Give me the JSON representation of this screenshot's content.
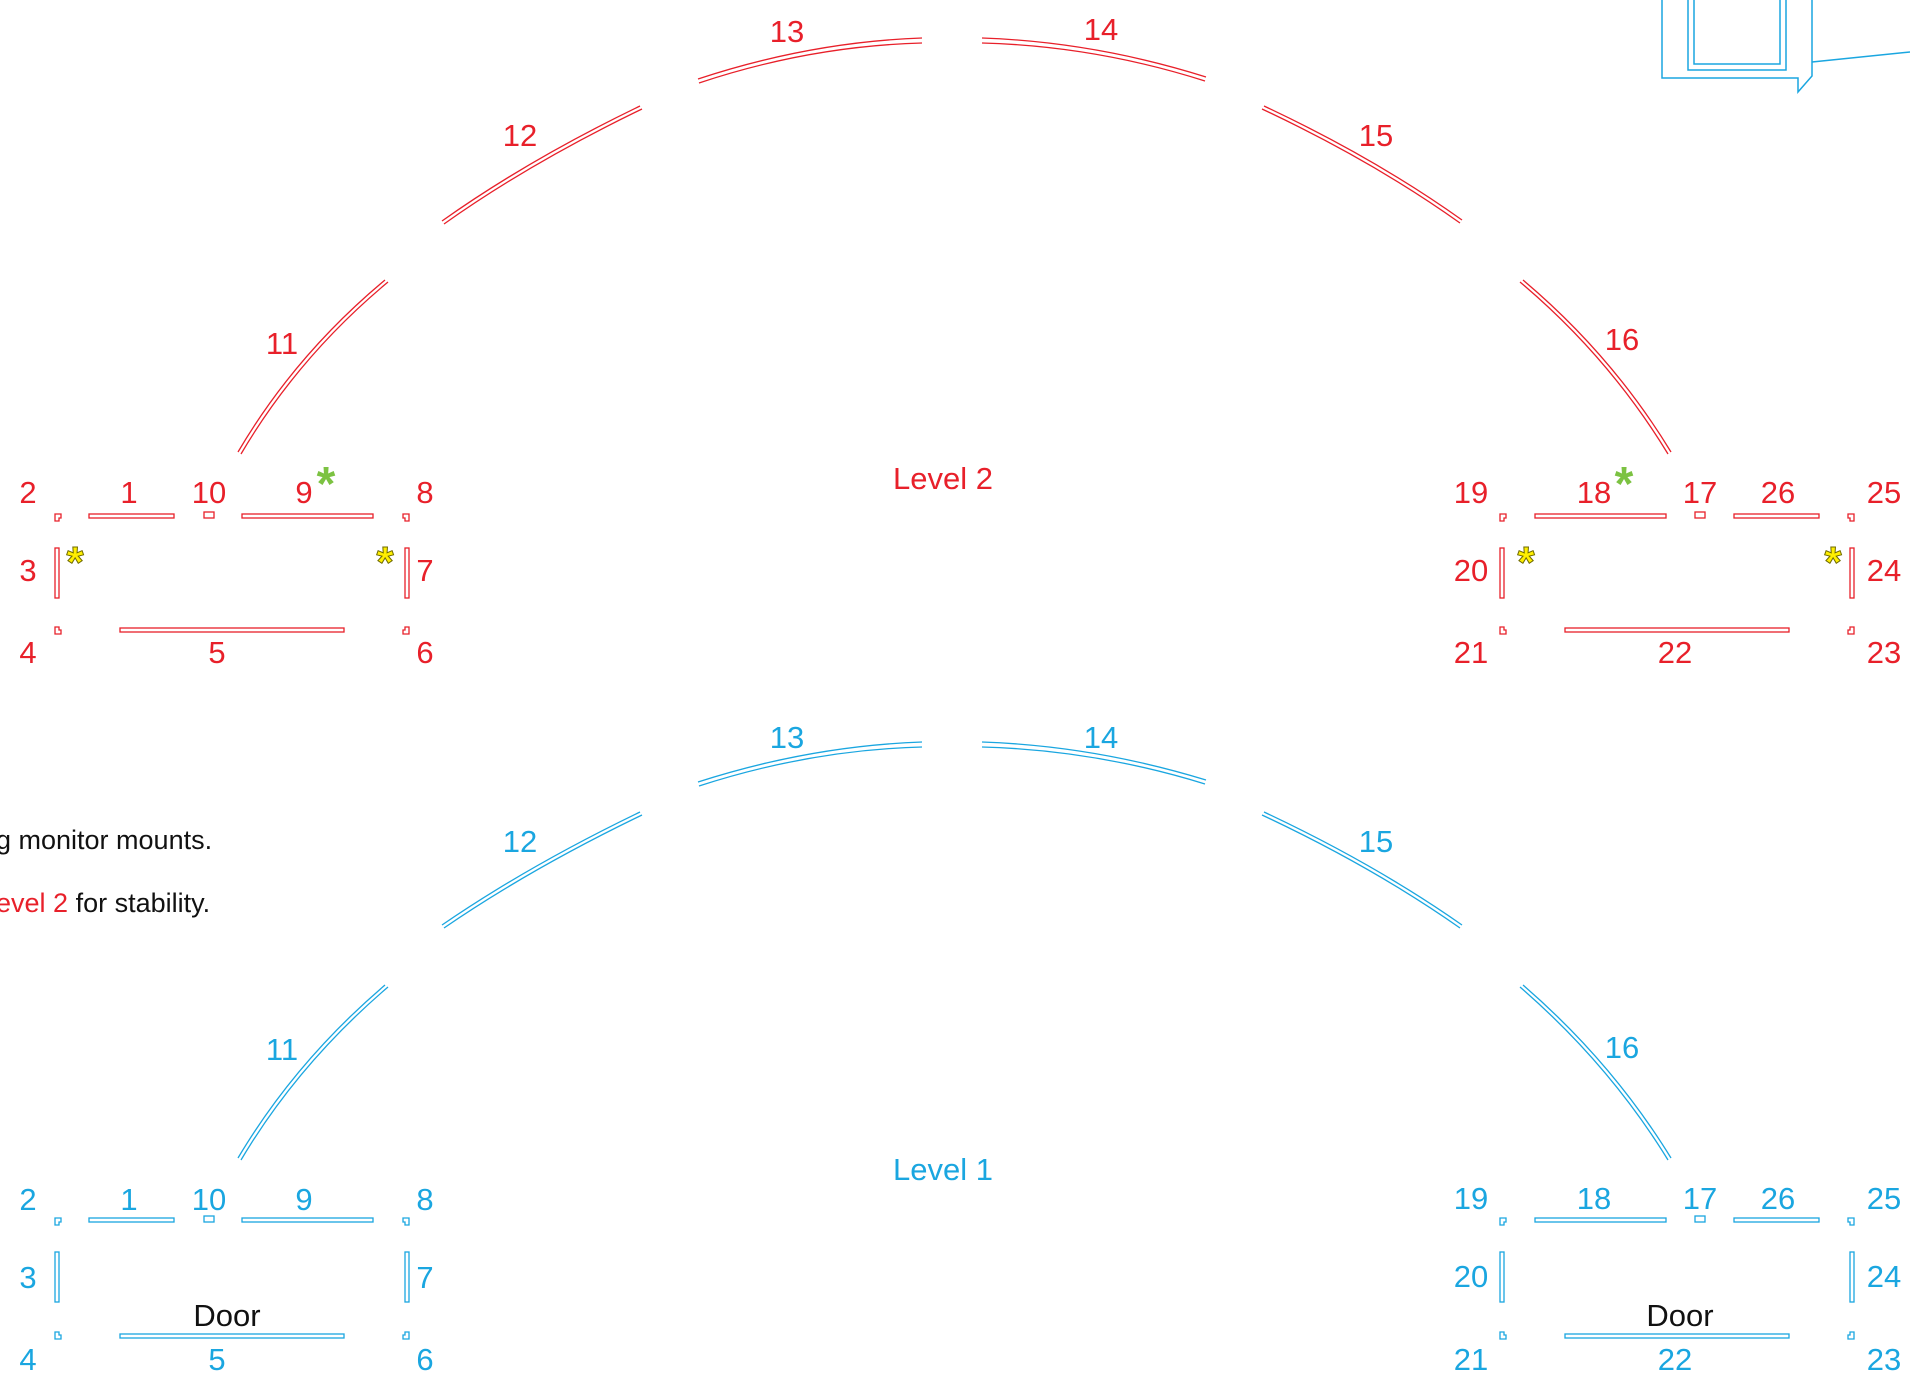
{
  "colors": {
    "level2": "#e8202a",
    "level1": "#1aa6e0",
    "primary_marker": "#7cc242",
    "secondary_marker": "#ffef00",
    "text": "#111111"
  },
  "level2": {
    "title": "Level 2",
    "left_labels": {
      "n1": "1",
      "n2": "2",
      "n3": "3",
      "n4": "4",
      "n5": "5",
      "n6": "6",
      "n7": "7",
      "n8": "8",
      "n9": "9",
      "n10": "10"
    },
    "arc_labels": {
      "n11": "11",
      "n12": "12",
      "n13": "13",
      "n14": "14",
      "n15": "15",
      "n16": "16"
    },
    "right_labels": {
      "n17": "17",
      "n18": "18",
      "n19": "19",
      "n20": "20",
      "n21": "21",
      "n22": "22",
      "n23": "23",
      "n24": "24",
      "n25": "25",
      "n26": "26"
    }
  },
  "level1": {
    "title": "Level 1",
    "door_label": "Door",
    "left_labels": {
      "n1": "1",
      "n2": "2",
      "n3": "3",
      "n4": "4",
      "n5": "5",
      "n6": "6",
      "n7": "7",
      "n8": "8",
      "n9": "9",
      "n10": "10"
    },
    "arc_labels": {
      "n11": "11",
      "n12": "12",
      "n13": "13",
      "n14": "14",
      "n15": "15",
      "n16": "16"
    },
    "right_labels": {
      "n17": "17",
      "n18": "18",
      "n19": "19",
      "n20": "20",
      "n21": "21",
      "n22": "22",
      "n23": "23",
      "n24": "24",
      "n25": "25",
      "n26": "26"
    }
  },
  "markers": {
    "symbol": "*"
  },
  "notes": {
    "line1": "g monitor mounts.",
    "line2_highlight": "evel 2",
    "line2_rest": " for stability."
  }
}
